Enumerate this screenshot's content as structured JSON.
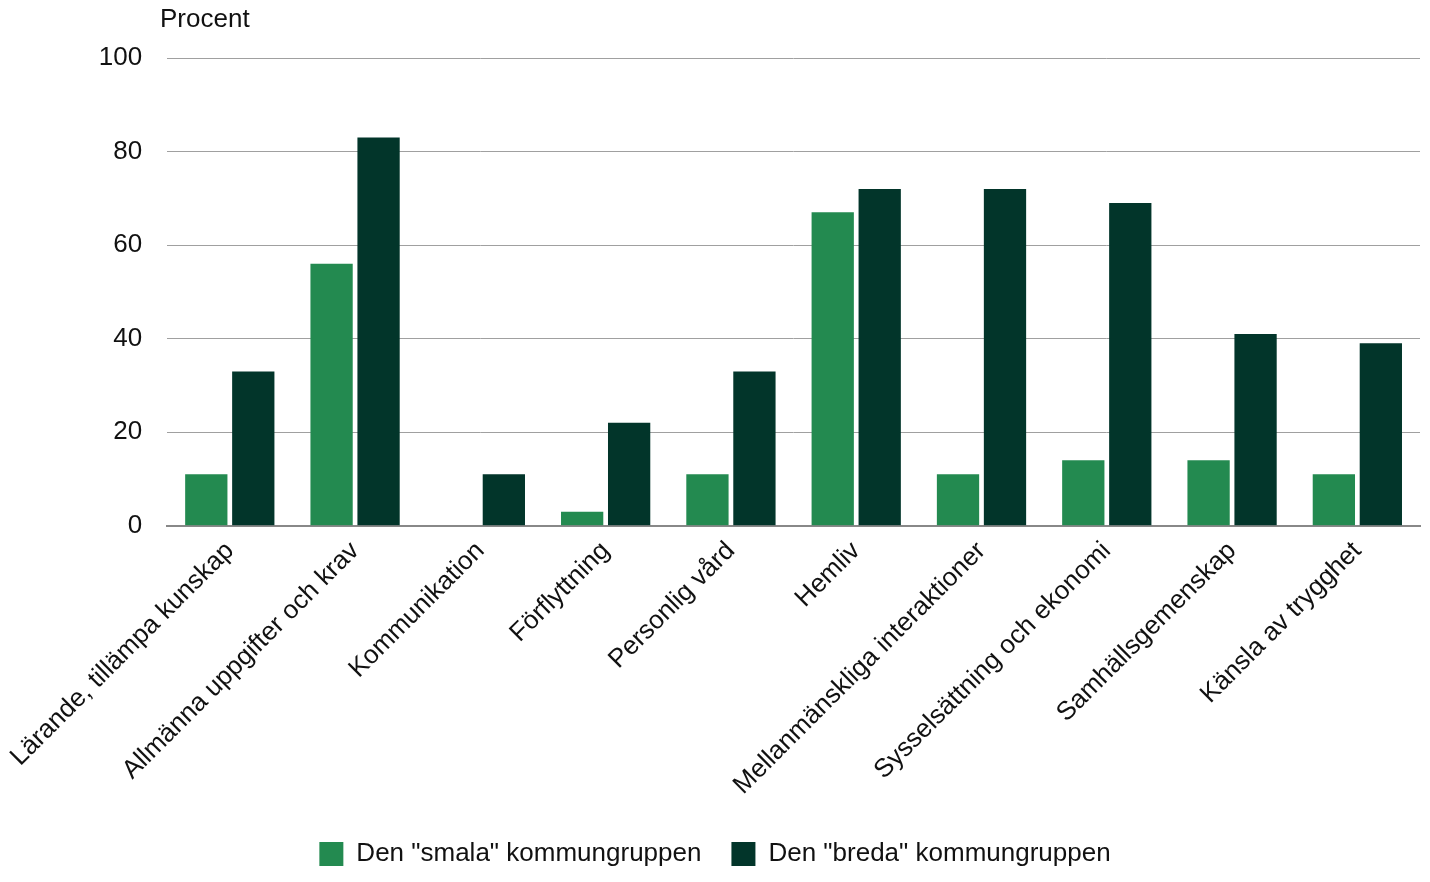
{
  "chart_data": {
    "type": "bar",
    "y_label": "Procent",
    "categories": [
      "Lärande, tillämpa kunskap",
      "Allmänna uppgifter och krav",
      "Kommunikation",
      "Förflyttning",
      "Personlig vård",
      "Hemliv",
      "Mellanmänskliga interaktioner",
      "Sysselsättning och ekonomi",
      "Samhällsgemenskap",
      "Känsla av trygghet"
    ],
    "series": [
      {
        "name": "Den \"smala\" kommungruppen",
        "color": "#238a50",
        "values": [
          11,
          56,
          0,
          3,
          11,
          67,
          11,
          14,
          14,
          11
        ]
      },
      {
        "name": "Den \"breda\" kommungruppen",
        "color": "#02352a",
        "values": [
          33,
          83,
          11,
          22,
          33,
          72,
          72,
          69,
          41,
          39
        ]
      }
    ],
    "ylim": [
      0,
      100
    ],
    "yticks": [
      0,
      20,
      40,
      60,
      80,
      100
    ],
    "grid": true,
    "legend": "bottom"
  }
}
